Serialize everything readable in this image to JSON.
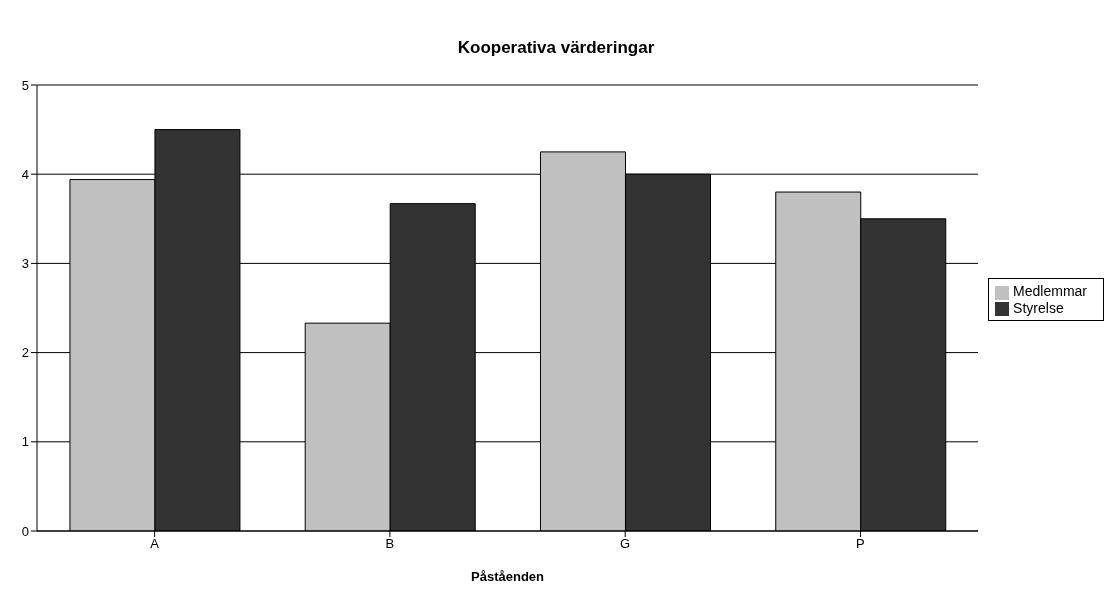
{
  "chart_data": {
    "type": "bar",
    "title": "Kooperativa värderingar",
    "xlabel": "Påståenden",
    "categories": [
      "A",
      "B",
      "G",
      "P"
    ],
    "series": [
      {
        "name": "Medlemmar",
        "color": "#c0c0c0",
        "values": [
          3.94,
          2.33,
          4.25,
          3.8
        ]
      },
      {
        "name": "Styrelse",
        "color": "#333333",
        "values": [
          4.5,
          3.67,
          4.0,
          3.5
        ]
      }
    ],
    "ylim": [
      0,
      5
    ],
    "yticks": [
      0,
      1,
      2,
      3,
      4,
      5
    ],
    "grid": "y",
    "legend": "right"
  }
}
